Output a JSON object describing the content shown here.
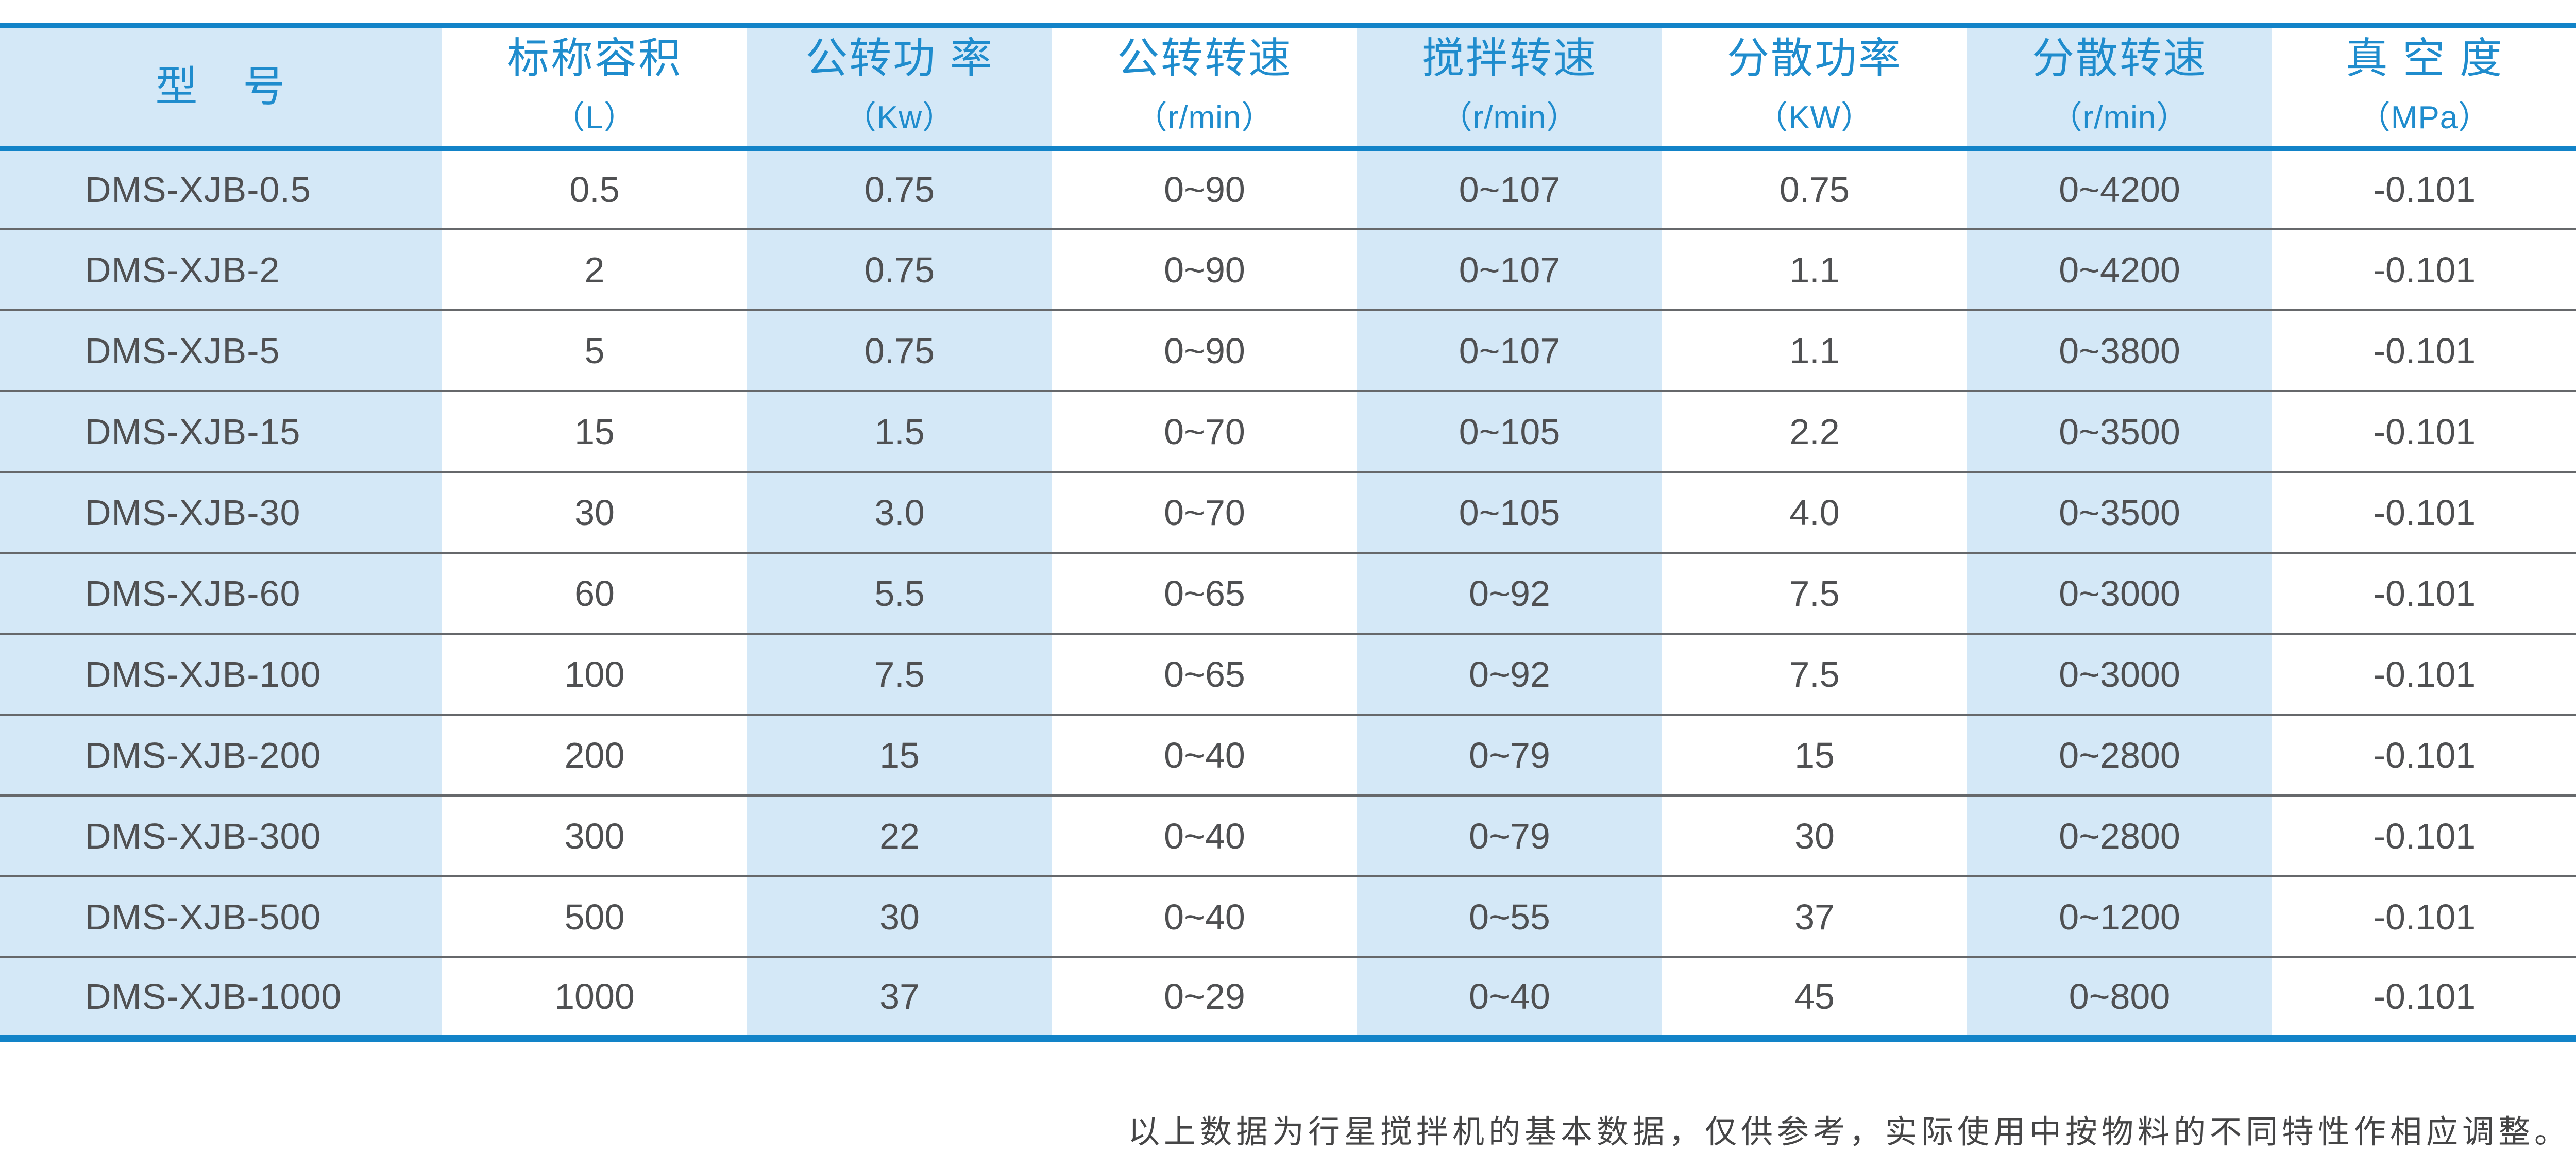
{
  "colors": {
    "accent_line": "#1283c8",
    "header_text": "#1f8ccd",
    "light_blue": "#d4e8f7",
    "cell_text": "#4f5052",
    "separator": "#66686b",
    "footnote_text": "#454546",
    "page_bg": "#ffffff"
  },
  "table": {
    "columns": [
      {
        "label": "型　号",
        "unit": ""
      },
      {
        "label": "标称容积",
        "unit": "（L）"
      },
      {
        "label": "公转功 率",
        "unit": "（Kw）"
      },
      {
        "label": "公转转速",
        "unit": "（r/min）"
      },
      {
        "label": "搅拌转速",
        "unit": "（r/min）"
      },
      {
        "label": "分散功率",
        "unit": "（KW）"
      },
      {
        "label": "分散转速",
        "unit": "（r/min）"
      },
      {
        "label": "真 空 度",
        "unit": "（MPa）"
      }
    ],
    "rows": [
      {
        "model": "DMS-XJB-0.5",
        "values": [
          "0.5",
          "0.75",
          "0~90",
          "0~107",
          "0.75",
          "0~4200",
          "-0.101"
        ]
      },
      {
        "model": "DMS-XJB-2",
        "values": [
          "2",
          "0.75",
          "0~90",
          "0~107",
          "1.1",
          "0~4200",
          "-0.101"
        ]
      },
      {
        "model": "DMS-XJB-5",
        "values": [
          "5",
          "0.75",
          "0~90",
          "0~107",
          "1.1",
          "0~3800",
          "-0.101"
        ]
      },
      {
        "model": "DMS-XJB-15",
        "values": [
          "15",
          "1.5",
          "0~70",
          "0~105",
          "2.2",
          "0~3500",
          "-0.101"
        ]
      },
      {
        "model": "DMS-XJB-30",
        "values": [
          "30",
          "3.0",
          "0~70",
          "0~105",
          "4.0",
          "0~3500",
          "-0.101"
        ]
      },
      {
        "model": "DMS-XJB-60",
        "values": [
          "60",
          "5.5",
          "0~65",
          "0~92",
          "7.5",
          "0~3000",
          "-0.101"
        ]
      },
      {
        "model": "DMS-XJB-100",
        "values": [
          "100",
          "7.5",
          "0~65",
          "0~92",
          "7.5",
          "0~3000",
          "-0.101"
        ]
      },
      {
        "model": "DMS-XJB-200",
        "values": [
          "200",
          "15",
          "0~40",
          "0~79",
          "15",
          "0~2800",
          "-0.101"
        ]
      },
      {
        "model": "DMS-XJB-300",
        "values": [
          "300",
          "22",
          "0~40",
          "0~79",
          "30",
          "0~2800",
          "-0.101"
        ]
      },
      {
        "model": "DMS-XJB-500",
        "values": [
          "500",
          "30",
          "0~40",
          "0~55",
          "37",
          "0~1200",
          "-0.101"
        ]
      },
      {
        "model": "DMS-XJB-1000",
        "values": [
          "1000",
          "37",
          "0~29",
          "0~40",
          "45",
          "0~800",
          "-0.101"
        ]
      }
    ]
  },
  "footnote": {
    "text": "以上数据为行星搅拌机的基本数据，仅供参考，实际使用中按物料的不同特性作相应调整。"
  }
}
